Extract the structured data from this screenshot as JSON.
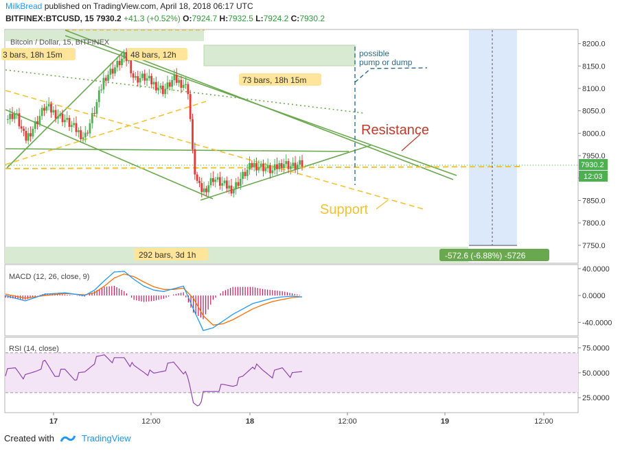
{
  "header": {
    "author": "MilkBread",
    "published_text": "published on TradingView.com, April 18, 2018 06:17 UTC",
    "symbol": "BITFINEX:BTCUSD, 15",
    "last": "7930.2",
    "change": "+41.3 (+0.52%)",
    "open_label": "O:",
    "open": "7924.7",
    "high_label": "H:",
    "high": "7932.5",
    "low_label": "L:",
    "low": "7924.2",
    "close_label": "C:",
    "close": "7930.2"
  },
  "footer": {
    "created_with": "Created with",
    "brand": "TradingView"
  },
  "colors": {
    "up": "#4caf50",
    "down": "#e53935",
    "green_line": "#6aa84f",
    "yellow": "#f1c232",
    "macd": "#2196f3",
    "signal": "#ff6d00",
    "rsi": "#8e44ad",
    "rsi_band": "#f3e5f5"
  },
  "chart_data": {
    "type": "candlestick",
    "title": "Bitcoin / Dollar, 15, BITFINEX",
    "price_axis": {
      "ticks": [
        "8200.0",
        "8150.0",
        "8100.0",
        "8050.0",
        "8000.0",
        "7950.0",
        "7900.0",
        "7850.0",
        "7800.0",
        "7750.0"
      ],
      "ylim": [
        7710,
        8230
      ],
      "last_price_label": "7930.2",
      "countdown_label": "12:03"
    },
    "time_axis": {
      "ticks": [
        "17",
        "12:00",
        "18",
        "12:00",
        "19",
        "12:00"
      ]
    },
    "price_path": [
      [
        0,
        8030
      ],
      [
        2,
        8045
      ],
      [
        4,
        7985
      ],
      [
        6,
        8020
      ],
      [
        8,
        8060
      ],
      [
        10,
        8045
      ],
      [
        12,
        8030
      ],
      [
        14,
        8010
      ],
      [
        16,
        7990
      ],
      [
        18,
        8050
      ],
      [
        20,
        8125
      ],
      [
        22,
        8145
      ],
      [
        24,
        8170
      ],
      [
        25,
        8160
      ],
      [
        26,
        8120
      ],
      [
        28,
        8125
      ],
      [
        30,
        8110
      ],
      [
        32,
        8095
      ],
      [
        34,
        8120
      ],
      [
        36,
        8110
      ],
      [
        37,
        8095
      ],
      [
        38,
        7930
      ],
      [
        39,
        7880
      ],
      [
        40,
        7870
      ],
      [
        42,
        7900
      ],
      [
        44,
        7885
      ],
      [
        46,
        7875
      ],
      [
        48,
        7905
      ],
      [
        50,
        7930
      ],
      [
        52,
        7925
      ],
      [
        54,
        7915
      ],
      [
        56,
        7935
      ],
      [
        58,
        7925
      ],
      [
        60,
        7930
      ]
    ],
    "annotations": {
      "bars_left": "3 bars, 18h 15m",
      "bars_48": "48 bars, 12h",
      "bars_73": "73 bars, 18h 15m",
      "bars_292": "292 bars, 3d 1h",
      "measure": "-572.6 (-6.88%) -5726",
      "pump_dump": [
        "possible",
        "pump or dump"
      ],
      "resistance": "Resistance",
      "support": "Support"
    },
    "macd": {
      "label": "MACD (12, 26, close, 9)",
      "ticks": [
        "40.0000",
        "0.0000",
        "-40.0000"
      ],
      "ylim": [
        -60,
        45
      ],
      "macd_path": [
        [
          0,
          0
        ],
        [
          4,
          -8
        ],
        [
          8,
          2
        ],
        [
          12,
          4
        ],
        [
          16,
          0
        ],
        [
          18,
          8
        ],
        [
          20,
          22
        ],
        [
          22,
          35
        ],
        [
          24,
          36
        ],
        [
          26,
          24
        ],
        [
          28,
          14
        ],
        [
          30,
          8
        ],
        [
          32,
          6
        ],
        [
          34,
          10
        ],
        [
          36,
          14
        ],
        [
          38,
          -20
        ],
        [
          40,
          -52
        ],
        [
          42,
          -48
        ],
        [
          44,
          -38
        ],
        [
          46,
          -28
        ],
        [
          48,
          -20
        ],
        [
          50,
          -12
        ],
        [
          52,
          -8
        ],
        [
          54,
          -4
        ],
        [
          56,
          -2
        ],
        [
          58,
          -1
        ],
        [
          60,
          -2
        ]
      ],
      "signal_path": [
        [
          0,
          2
        ],
        [
          4,
          -4
        ],
        [
          8,
          0
        ],
        [
          12,
          3
        ],
        [
          16,
          1
        ],
        [
          18,
          4
        ],
        [
          20,
          14
        ],
        [
          22,
          26
        ],
        [
          24,
          32
        ],
        [
          26,
          28
        ],
        [
          28,
          20
        ],
        [
          30,
          13
        ],
        [
          32,
          9
        ],
        [
          34,
          9
        ],
        [
          36,
          11
        ],
        [
          38,
          -4
        ],
        [
          40,
          -30
        ],
        [
          42,
          -44
        ],
        [
          44,
          -42
        ],
        [
          46,
          -36
        ],
        [
          48,
          -28
        ],
        [
          50,
          -20
        ],
        [
          52,
          -14
        ],
        [
          54,
          -9
        ],
        [
          56,
          -6
        ],
        [
          58,
          -3
        ],
        [
          60,
          -2
        ]
      ]
    },
    "rsi": {
      "label": "RSI (14, close)",
      "ticks": [
        "75.0000",
        "50.0000",
        "25.0000"
      ],
      "ylim": [
        10,
        85
      ],
      "band": [
        30,
        70
      ],
      "path": [
        [
          0,
          50
        ],
        [
          2,
          55
        ],
        [
          4,
          45
        ],
        [
          6,
          52
        ],
        [
          8,
          60
        ],
        [
          10,
          48
        ],
        [
          12,
          52
        ],
        [
          14,
          45
        ],
        [
          16,
          50
        ],
        [
          18,
          62
        ],
        [
          20,
          68
        ],
        [
          22,
          62
        ],
        [
          24,
          66
        ],
        [
          26,
          55
        ],
        [
          28,
          52
        ],
        [
          30,
          48
        ],
        [
          32,
          54
        ],
        [
          34,
          60
        ],
        [
          36,
          52
        ],
        [
          37,
          42
        ],
        [
          38,
          20
        ],
        [
          39,
          18
        ],
        [
          40,
          28
        ],
        [
          42,
          32
        ],
        [
          44,
          36
        ],
        [
          46,
          38
        ],
        [
          48,
          45
        ],
        [
          50,
          58
        ],
        [
          52,
          52
        ],
        [
          54,
          48
        ],
        [
          56,
          55
        ],
        [
          58,
          47
        ],
        [
          60,
          52
        ]
      ]
    }
  }
}
